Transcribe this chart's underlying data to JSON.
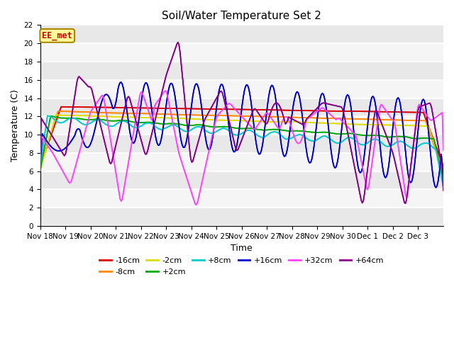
{
  "title": "Soil/Water Temperature Set 2",
  "xlabel": "Time",
  "ylabel": "Temperature (C)",
  "ylim": [
    0,
    22
  ],
  "yticks": [
    0,
    2,
    4,
    6,
    8,
    10,
    12,
    14,
    16,
    18,
    20,
    22
  ],
  "annotation": "EE_met",
  "annotation_color": "#cc0000",
  "annotation_bg": "#ffff99",
  "annotation_border": "#aa8800",
  "fig_bg": "#ffffff",
  "plot_bg": "#f5f5f5",
  "grid_color": "#ffffff",
  "series": [
    {
      "label": "-16cm",
      "color": "#dd0000",
      "lw": 1.5
    },
    {
      "label": "-8cm",
      "color": "#ff8800",
      "lw": 1.5
    },
    {
      "label": "-2cm",
      "color": "#dddd00",
      "lw": 1.5
    },
    {
      "label": "+2cm",
      "color": "#00aa00",
      "lw": 1.5
    },
    {
      "label": "+8cm",
      "color": "#00cccc",
      "lw": 1.5
    },
    {
      "label": "+16cm",
      "color": "#0000cc",
      "lw": 1.5
    },
    {
      "label": "+32cm",
      "color": "#ff44ff",
      "lw": 1.5
    },
    {
      "label": "+64cm",
      "color": "#880088",
      "lw": 1.5
    }
  ],
  "xtick_labels": [
    "Nov 18",
    "Nov 19",
    "Nov 20",
    "Nov 21",
    "Nov 22",
    "Nov 23",
    "Nov 24",
    "Nov 25",
    "Nov 26",
    "Nov 27",
    "Nov 28",
    "Nov 29",
    "Nov 30",
    "Dec 1",
    "Dec 2",
    "Dec 3"
  ],
  "n_days": 16
}
